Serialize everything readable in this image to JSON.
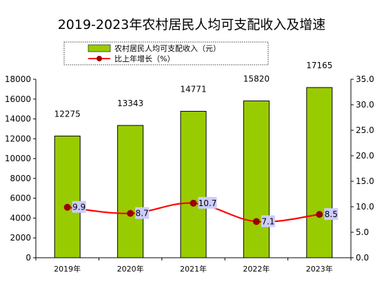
{
  "chart_data": {
    "type": "bar",
    "title": "2019-2023年农村居民人均可支配收入及增速",
    "categories": [
      "2019年",
      "2020年",
      "2021年",
      "2022年",
      "2023年"
    ],
    "series": [
      {
        "name": "农村居民人均可支配收入（元）",
        "type": "bar",
        "axis": "left",
        "values": [
          12275,
          13343,
          14771,
          15820,
          17165
        ],
        "color": "#99cc00"
      },
      {
        "name": "比上年增长（%）",
        "type": "line",
        "axis": "right",
        "values": [
          9.9,
          8.7,
          10.7,
          7.1,
          8.5
        ],
        "color": "#ff0000",
        "marker_color": "#990000"
      }
    ],
    "ylim_left": [
      0,
      18000
    ],
    "yticks_left": [
      0,
      2000,
      4000,
      6000,
      8000,
      10000,
      12000,
      14000,
      16000,
      18000
    ],
    "ylim_right": [
      0,
      35
    ],
    "yticks_right": [
      "0.0",
      "5.0",
      "10.0",
      "15.0",
      "20.0",
      "25.0",
      "30.0",
      "35.0"
    ],
    "grid": false,
    "legend_position": "top",
    "colors": {
      "bar_fill": "#99cc00",
      "bar_stroke": "#000000",
      "line": "#ff0000",
      "marker": "#990000",
      "label_bg": "#ccccff"
    }
  }
}
